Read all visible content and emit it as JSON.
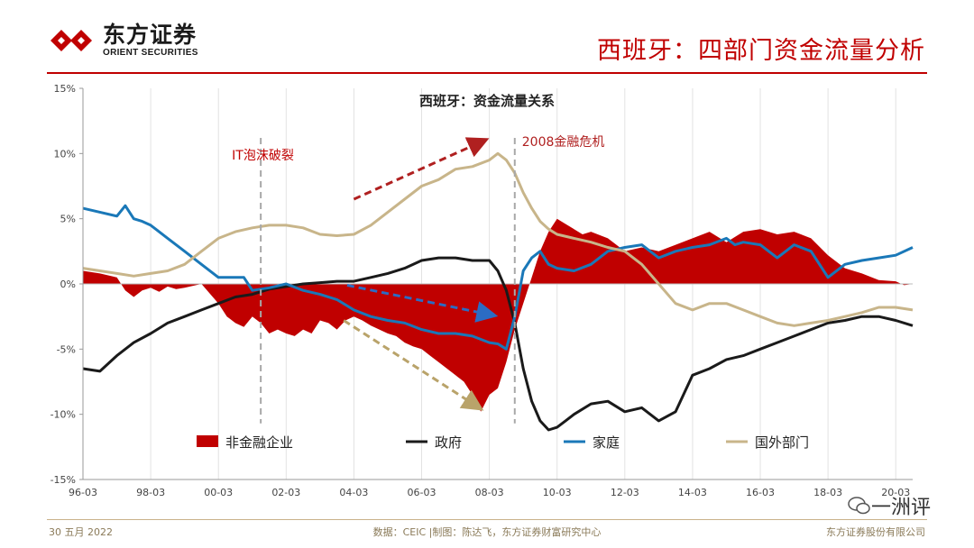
{
  "brand": {
    "name_cn": "东方证券",
    "name_en": "ORIENT SECURITIES"
  },
  "page_title": "西班牙：四部门资金流量分析",
  "footer": {
    "date": "30 五月 2022",
    "source": "数据：CEIC |制图：陈达飞，东方证券财富研究中心",
    "company": "东方证券股份有限公司"
  },
  "watermark": "一洲评",
  "colors": {
    "accent": "#c00000",
    "government": "#1a1a1a",
    "household": "#1a78b8",
    "foreign": "#c8b58a",
    "arrow_red": "#b02020",
    "arrow_blue": "#2b6cc4",
    "arrow_tan": "#b9a36a"
  },
  "chart_data": {
    "type": "area",
    "title": "西班牙：资金流量关系",
    "xlabel": "",
    "ylabel": "",
    "x_ticks": [
      "96-03",
      "98-03",
      "00-03",
      "02-03",
      "04-03",
      "06-03",
      "08-03",
      "10-03",
      "12-03",
      "14-03",
      "16-03",
      "18-03",
      "20-03"
    ],
    "y_ticks": [
      "15%",
      "10%",
      "5%",
      "0%",
      "-5%",
      "-10%",
      "-15%"
    ],
    "ylim": [
      -15,
      15
    ],
    "xlim": [
      1996.0,
      2020.5
    ],
    "grid": "vertical",
    "legend_position": "bottom-inside",
    "annotations": [
      {
        "text": "IT泡沫破裂",
        "x": 2001.25
      },
      {
        "text": "2008金融危机",
        "x": 2008.75
      }
    ],
    "series": [
      {
        "name": "非金融企业",
        "kind": "area",
        "color": "#c00000",
        "x": [
          1996.0,
          1996.5,
          1997.0,
          1997.25,
          1997.5,
          1997.75,
          1998.0,
          1998.25,
          1998.5,
          1998.75,
          1999.0,
          1999.5,
          2000.0,
          2000.25,
          2000.5,
          2000.75,
          2001.0,
          2001.25,
          2001.5,
          2001.75,
          2002.0,
          2002.25,
          2002.5,
          2002.75,
          2003.0,
          2003.25,
          2003.5,
          2003.75,
          2004.0,
          2004.25,
          2004.5,
          2004.75,
          2005.0,
          2005.25,
          2005.5,
          2005.75,
          2006.0,
          2006.25,
          2006.5,
          2006.75,
          2007.0,
          2007.25,
          2007.5,
          2007.75,
          2008.0,
          2008.25,
          2008.5,
          2008.75,
          2009.0,
          2009.25,
          2009.5,
          2009.75,
          2010.0,
          2010.25,
          2010.5,
          2010.75,
          2011.0,
          2011.5,
          2012.0,
          2012.5,
          2013.0,
          2013.5,
          2014.0,
          2014.5,
          2015.0,
          2015.5,
          2016.0,
          2016.5,
          2017.0,
          2017.5,
          2018.0,
          2018.5,
          2019.0,
          2019.5,
          2020.0,
          2020.25,
          2020.5
        ],
        "values": [
          1.0,
          0.8,
          0.5,
          -0.5,
          -1.0,
          -0.5,
          -0.3,
          -0.6,
          -0.2,
          -0.4,
          -0.3,
          0.0,
          -1.5,
          -2.5,
          -3.0,
          -3.3,
          -2.5,
          -3.0,
          -3.8,
          -3.5,
          -3.8,
          -4.0,
          -3.5,
          -3.8,
          -2.8,
          -3.0,
          -3.5,
          -2.8,
          -2.5,
          -2.8,
          -3.2,
          -3.5,
          -3.8,
          -4.0,
          -4.5,
          -4.8,
          -5.0,
          -5.5,
          -6.0,
          -6.5,
          -7.0,
          -7.5,
          -8.5,
          -9.8,
          -8.5,
          -8.0,
          -6.0,
          -3.5,
          -1.5,
          0.5,
          2.5,
          4.0,
          5.0,
          4.6,
          4.2,
          3.8,
          4.0,
          3.5,
          2.5,
          2.8,
          2.5,
          3.0,
          3.5,
          4.0,
          3.2,
          4.0,
          4.2,
          3.8,
          4.0,
          3.5,
          2.2,
          1.2,
          0.8,
          0.3,
          0.2,
          -0.1,
          0.0
        ]
      },
      {
        "name": "政府",
        "kind": "line",
        "color": "#1a1a1a",
        "x": [
          1996.0,
          1996.5,
          1997.0,
          1997.5,
          1998.0,
          1998.5,
          1999.0,
          1999.5,
          2000.0,
          2000.5,
          2001.0,
          2001.5,
          2002.0,
          2002.5,
          2003.0,
          2003.5,
          2004.0,
          2004.5,
          2005.0,
          2005.5,
          2006.0,
          2006.5,
          2007.0,
          2007.5,
          2008.0,
          2008.25,
          2008.5,
          2008.75,
          2009.0,
          2009.25,
          2009.5,
          2009.75,
          2010.0,
          2010.25,
          2010.5,
          2011.0,
          2011.5,
          2012.0,
          2012.5,
          2013.0,
          2013.5,
          2014.0,
          2014.5,
          2015.0,
          2015.5,
          2016.0,
          2016.5,
          2017.0,
          2017.5,
          2018.0,
          2018.5,
          2019.0,
          2019.5,
          2020.0,
          2020.5
        ],
        "values": [
          -6.5,
          -6.7,
          -5.5,
          -4.5,
          -3.8,
          -3.0,
          -2.5,
          -2.0,
          -1.5,
          -1.0,
          -0.8,
          -0.4,
          -0.2,
          0.0,
          0.1,
          0.2,
          0.2,
          0.5,
          0.8,
          1.2,
          1.8,
          2.0,
          2.0,
          1.8,
          1.8,
          1.0,
          -0.5,
          -3.0,
          -6.5,
          -9.0,
          -10.5,
          -11.2,
          -11.0,
          -10.5,
          -10.0,
          -9.2,
          -9.0,
          -9.8,
          -9.5,
          -10.5,
          -9.8,
          -7.0,
          -6.5,
          -5.8,
          -5.5,
          -5.0,
          -4.5,
          -4.0,
          -3.5,
          -3.0,
          -2.8,
          -2.5,
          -2.5,
          -2.8,
          -3.2
        ]
      },
      {
        "name": "家庭",
        "kind": "line",
        "color": "#1a78b8",
        "x": [
          1996.0,
          1996.5,
          1997.0,
          1997.25,
          1997.5,
          1997.75,
          1998.0,
          1998.5,
          1999.0,
          1999.5,
          2000.0,
          2000.5,
          2000.75,
          2001.0,
          2001.5,
          2002.0,
          2002.5,
          2003.0,
          2003.5,
          2004.0,
          2004.5,
          2005.0,
          2005.5,
          2006.0,
          2006.5,
          2007.0,
          2007.5,
          2008.0,
          2008.25,
          2008.5,
          2008.75,
          2009.0,
          2009.25,
          2009.5,
          2009.75,
          2010.0,
          2010.5,
          2011.0,
          2011.5,
          2012.0,
          2012.5,
          2013.0,
          2013.5,
          2014.0,
          2014.5,
          2015.0,
          2015.25,
          2015.5,
          2016.0,
          2016.5,
          2017.0,
          2017.5,
          2018.0,
          2018.5,
          2019.0,
          2019.5,
          2020.0,
          2020.5
        ],
        "values": [
          5.8,
          5.5,
          5.2,
          6.0,
          5.0,
          4.8,
          4.5,
          3.5,
          2.5,
          1.5,
          0.5,
          0.5,
          0.5,
          -0.5,
          -0.3,
          0.0,
          -0.5,
          -0.8,
          -1.2,
          -2.0,
          -2.5,
          -2.8,
          -3.0,
          -3.5,
          -3.8,
          -3.8,
          -4.0,
          -4.5,
          -4.6,
          -5.0,
          -2.5,
          1.0,
          2.0,
          2.5,
          1.5,
          1.2,
          1.0,
          1.5,
          2.5,
          2.8,
          3.0,
          2.0,
          2.5,
          2.8,
          3.0,
          3.5,
          3.0,
          3.2,
          3.0,
          2.0,
          3.0,
          2.5,
          0.5,
          1.5,
          1.8,
          2.0,
          2.2,
          2.8
        ]
      },
      {
        "name": "国外部门",
        "kind": "line",
        "color": "#c8b58a",
        "x": [
          1996.0,
          1996.5,
          1997.0,
          1997.5,
          1998.0,
          1998.5,
          1999.0,
          1999.5,
          2000.0,
          2000.5,
          2001.0,
          2001.5,
          2002.0,
          2002.5,
          2003.0,
          2003.5,
          2004.0,
          2004.5,
          2005.0,
          2005.5,
          2006.0,
          2006.5,
          2007.0,
          2007.5,
          2008.0,
          2008.25,
          2008.5,
          2008.75,
          2009.0,
          2009.25,
          2009.5,
          2009.75,
          2010.0,
          2010.5,
          2011.0,
          2011.5,
          2012.0,
          2012.5,
          2013.0,
          2013.5,
          2014.0,
          2014.5,
          2015.0,
          2015.5,
          2016.0,
          2016.5,
          2017.0,
          2017.5,
          2018.0,
          2018.5,
          2019.0,
          2019.5,
          2020.0,
          2020.5
        ],
        "values": [
          1.2,
          1.0,
          0.8,
          0.6,
          0.8,
          1.0,
          1.5,
          2.5,
          3.5,
          4.0,
          4.3,
          4.5,
          4.5,
          4.3,
          3.8,
          3.7,
          3.8,
          4.5,
          5.5,
          6.5,
          7.5,
          8.0,
          8.8,
          9.0,
          9.5,
          10.0,
          9.5,
          8.5,
          7.0,
          5.8,
          4.8,
          4.2,
          3.8,
          3.5,
          3.2,
          2.8,
          2.5,
          1.5,
          0.0,
          -1.5,
          -2.0,
          -1.5,
          -1.5,
          -2.0,
          -2.5,
          -3.0,
          -3.2,
          -3.0,
          -2.8,
          -2.5,
          -2.2,
          -1.8,
          -1.8,
          -2.0
        ]
      }
    ]
  }
}
